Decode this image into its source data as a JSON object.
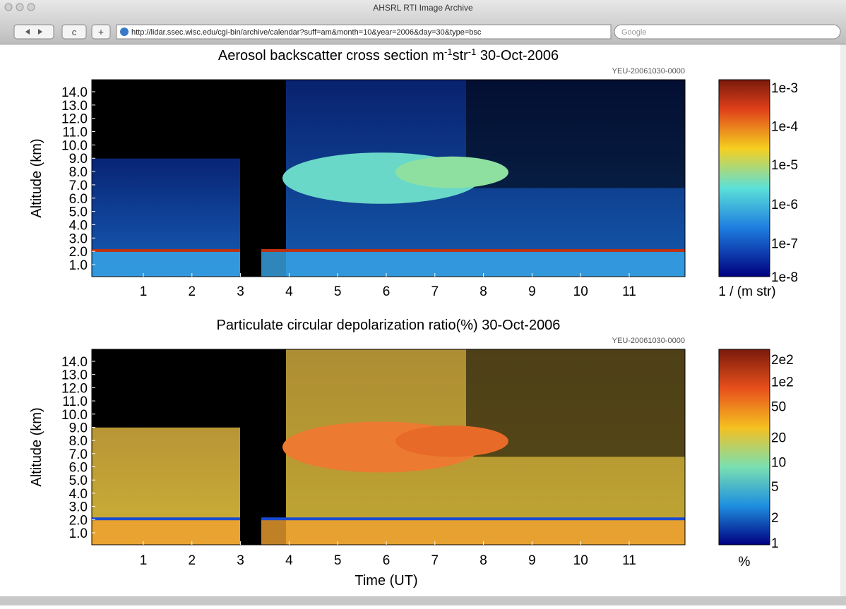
{
  "window": {
    "title": "AHSRL RTI Image Archive",
    "url": "http://lidar.ssec.wisc.edu/cgi-bin/archive/calendar?suff=am&month=10&year=2006&day=30&type=bsc",
    "search": "Google"
  },
  "panels": [
    {
      "title": [
        "Aerosol backscatter cross section m",
        "-1",
        "str",
        "-1",
        "  30-Oct-2006"
      ],
      "stamp": "YEU-20061030-0000",
      "y_label": "Altitude (km)",
      "yticks": [
        "1.0",
        "2.0",
        "3.0",
        "4.0",
        "5.0",
        "6.0",
        "7.0",
        "8.0",
        "9.0",
        "10.0",
        "11.0",
        "12.0",
        "13.0",
        "14.0"
      ],
      "xticks": [
        "1",
        "2",
        "3",
        "4",
        "5",
        "6",
        "7",
        "8",
        "9",
        "10",
        "11"
      ],
      "colorbar": {
        "labels": [
          "1e-3",
          "1e-4",
          "1e-5",
          "1e-6",
          "1e-7",
          "1e-8"
        ],
        "unit": "1 / (m str)"
      }
    },
    {
      "title": [
        "Particulate circular depolarization ratio(%)  30-Oct-2006"
      ],
      "stamp": "YEU-20061030-0000",
      "y_label": "Altitude (km)",
      "yticks": [
        "1.0",
        "2.0",
        "3.0",
        "4.0",
        "5.0",
        "6.0",
        "7.0",
        "8.0",
        "9.0",
        "10.0",
        "11.0",
        "12.0",
        "13.0",
        "14.0"
      ],
      "xticks": [
        "1",
        "2",
        "3",
        "4",
        "5",
        "6",
        "7",
        "8",
        "9",
        "10",
        "11"
      ],
      "x_label": "Time (UT)",
      "colorbar": {
        "labels": [
          "2e2",
          "1e2",
          "50",
          "20",
          "10",
          "5",
          "2",
          "1"
        ],
        "unit": "%"
      }
    }
  ]
}
